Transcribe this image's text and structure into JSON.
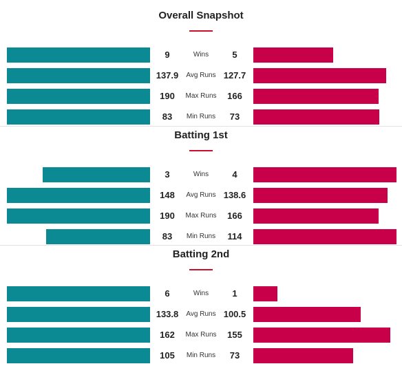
{
  "chart_data": [
    {
      "type": "bar",
      "title": "Overall Snapshot",
      "categories": [
        "Wins",
        "Avg Runs",
        "Max Runs",
        "Min Runs"
      ],
      "series": [
        {
          "values": [
            9,
            137.9,
            190,
            83
          ],
          "color": "#0b8a93"
        },
        {
          "values": [
            5,
            127.7,
            166,
            73
          ],
          "color": "#c8004a"
        }
      ],
      "display": [
        [
          "9",
          "5"
        ],
        [
          "137.9",
          "127.7"
        ],
        [
          "190",
          "166"
        ],
        [
          "83",
          "73"
        ]
      ]
    },
    {
      "type": "bar",
      "title": "Batting 1st",
      "categories": [
        "Wins",
        "Avg Runs",
        "Max Runs",
        "Min Runs"
      ],
      "series": [
        {
          "values": [
            3,
            148,
            190,
            83
          ],
          "color": "#0b8a93"
        },
        {
          "values": [
            4,
            138.6,
            166,
            114
          ],
          "color": "#c8004a"
        }
      ],
      "display": [
        [
          "3",
          "4"
        ],
        [
          "148",
          "138.6"
        ],
        [
          "190",
          "166"
        ],
        [
          "83",
          "114"
        ]
      ]
    },
    {
      "type": "bar",
      "title": "Batting 2nd",
      "categories": [
        "Wins",
        "Avg Runs",
        "Max Runs",
        "Min Runs"
      ],
      "series": [
        {
          "values": [
            6,
            133.8,
            162,
            105
          ],
          "color": "#0b8a93"
        },
        {
          "values": [
            1,
            100.5,
            155,
            73
          ],
          "color": "#c8004a"
        }
      ],
      "display": [
        [
          "6",
          "1"
        ],
        [
          "133.8",
          "100.5"
        ],
        [
          "162",
          "155"
        ],
        [
          "105",
          "73"
        ]
      ]
    }
  ]
}
